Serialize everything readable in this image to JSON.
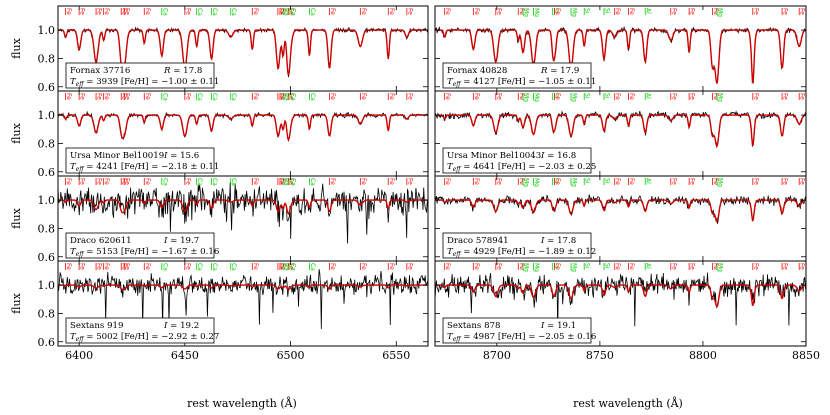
{
  "chart_data": {
    "type": "line",
    "xlabel": "rest wavelength (Å)",
    "ylabel": "flux",
    "columns": [
      {
        "xlim": [
          6390,
          6565
        ],
        "xticks": [
          6400,
          6450,
          6500,
          6550
        ]
      },
      {
        "xlim": [
          8670,
          8850
        ],
        "xticks": [
          8700,
          8750,
          8800,
          8850
        ]
      }
    ],
    "ylim": [
      0.57,
      1.17
    ],
    "yticks": [
      0.6,
      0.8,
      1.0
    ],
    "colors": {
      "observed": "#000000",
      "model": "#cc0000",
      "fe_marker": "#ff0000",
      "other_marker": "#00cc00"
    },
    "line_markers": {
      "left": [
        {
          "w": 6393.6,
          "el": "Fe",
          "color": "red"
        },
        {
          "w": 6400.0,
          "el": "Fe",
          "color": "red"
        },
        {
          "w": 6408.0,
          "el": "Fe",
          "color": "red"
        },
        {
          "w": 6411.6,
          "el": "Fe",
          "color": "red"
        },
        {
          "w": 6419.9,
          "el": "Fe",
          "color": "red"
        },
        {
          "w": 6421.3,
          "el": "Fe",
          "color": "red"
        },
        {
          "w": 6430.8,
          "el": "Fe",
          "color": "red"
        },
        {
          "w": 6439.1,
          "el": "Ca",
          "color": "green"
        },
        {
          "w": 6450.0,
          "el": "Fe",
          "color": "red"
        },
        {
          "w": 6455.6,
          "el": "Ca",
          "color": "green"
        },
        {
          "w": 6462.6,
          "el": "Ca",
          "color": "green"
        },
        {
          "w": 6471.7,
          "el": "Ca",
          "color": "green"
        },
        {
          "w": 6481.9,
          "el": "Fe",
          "color": "red"
        },
        {
          "w": 6494.0,
          "el": "Fe",
          "color": "red"
        },
        {
          "w": 6495.0,
          "el": "Fe",
          "color": "red"
        },
        {
          "w": 6496.5,
          "el": "Ba",
          "color": "green"
        },
        {
          "w": 6498.9,
          "el": "Fe",
          "color": "red"
        },
        {
          "w": 6499.7,
          "el": "Ca",
          "color": "green"
        },
        {
          "w": 6508.9,
          "el": "Ca",
          "color": "green"
        },
        {
          "w": 6518.4,
          "el": "Fe",
          "color": "red"
        },
        {
          "w": 6533.0,
          "el": "Fe",
          "color": "red"
        },
        {
          "w": 6546.2,
          "el": "Fe",
          "color": "red"
        },
        {
          "w": 6555.0,
          "el": "Fe",
          "color": "red"
        }
      ],
      "right": [
        {
          "w": 8674.7,
          "el": "Fe",
          "color": "red"
        },
        {
          "w": 8688.6,
          "el": "Fe",
          "color": "red"
        },
        {
          "w": 8699.5,
          "el": "Fe",
          "color": "red"
        },
        {
          "w": 8710.4,
          "el": "Fe",
          "color": "red"
        },
        {
          "w": 8712.7,
          "el": "Mg",
          "color": "green"
        },
        {
          "w": 8717.8,
          "el": "Mg",
          "color": "green"
        },
        {
          "w": 8727.1,
          "el": "Si",
          "color": "green"
        },
        {
          "w": 8728.0,
          "el": "Fe",
          "color": "red"
        },
        {
          "w": 8736.0,
          "el": "Mg",
          "color": "green"
        },
        {
          "w": 8742.4,
          "el": "Si",
          "color": "green"
        },
        {
          "w": 8752.0,
          "el": "Si",
          "color": "green"
        },
        {
          "w": 8757.2,
          "el": "Fe",
          "color": "red"
        },
        {
          "w": 8763.9,
          "el": "Fe",
          "color": "red"
        },
        {
          "w": 8772.0,
          "el": "Al",
          "color": "green"
        },
        {
          "w": 8784.4,
          "el": "Fe",
          "color": "red"
        },
        {
          "w": 8793.3,
          "el": "Fe",
          "color": "red"
        },
        {
          "w": 8804.6,
          "el": "Fe",
          "color": "red"
        },
        {
          "w": 8806.8,
          "el": "Mg",
          "color": "green"
        },
        {
          "w": 8824.2,
          "el": "Fe",
          "color": "red"
        },
        {
          "w": 8838.4,
          "el": "Fe",
          "color": "red"
        },
        {
          "w": 8846.7,
          "el": "Fe",
          "color": "red"
        }
      ]
    },
    "panels": [
      {
        "row": 0,
        "col": 0,
        "star": "Fornax 37716",
        "mag_band": "R",
        "mag": "17.8",
        "teff": "3939",
        "feh": "−1.00 ± 0.11",
        "noise": 0.012,
        "depth": 1.0
      },
      {
        "row": 0,
        "col": 1,
        "star": "Fornax 40828",
        "mag_band": "R",
        "mag": "17.9",
        "teff": "4127",
        "feh": "−1.05 ± 0.11",
        "noise": 0.014,
        "depth": 1.0
      },
      {
        "row": 1,
        "col": 0,
        "star": "Ursa Minor Bel10019",
        "mag_band": "I",
        "mag": "15.6",
        "teff": "4241",
        "feh": "−2.18 ± 0.11",
        "noise": 0.012,
        "depth": 0.55
      },
      {
        "row": 1,
        "col": 1,
        "star": "Ursa Minor Bel10043",
        "mag_band": "I",
        "mag": "16.8",
        "teff": "4641",
        "feh": "−2.03 ± 0.25",
        "noise": 0.018,
        "depth": 0.55
      },
      {
        "row": 2,
        "col": 0,
        "star": "Draco 620611",
        "mag_band": "I",
        "mag": "19.7",
        "teff": "5153",
        "feh": "−1.67 ± 0.16",
        "noise": 0.085,
        "depth": 0.3
      },
      {
        "row": 2,
        "col": 1,
        "star": "Draco 578941",
        "mag_band": "I",
        "mag": "17.8",
        "teff": "4929",
        "feh": "−1.89 ± 0.12",
        "noise": 0.025,
        "depth": 0.35
      },
      {
        "row": 3,
        "col": 0,
        "star": "Sextans 919",
        "mag_band": "I",
        "mag": "19.2",
        "teff": "5002",
        "feh": "−2.92 ± 0.27",
        "noise": 0.06,
        "depth": 0.1
      },
      {
        "row": 3,
        "col": 1,
        "star": "Sextans 878",
        "mag_band": "I",
        "mag": "19.1",
        "teff": "4987",
        "feh": "−2.05 ± 0.16",
        "noise": 0.065,
        "depth": 0.35
      }
    ]
  }
}
